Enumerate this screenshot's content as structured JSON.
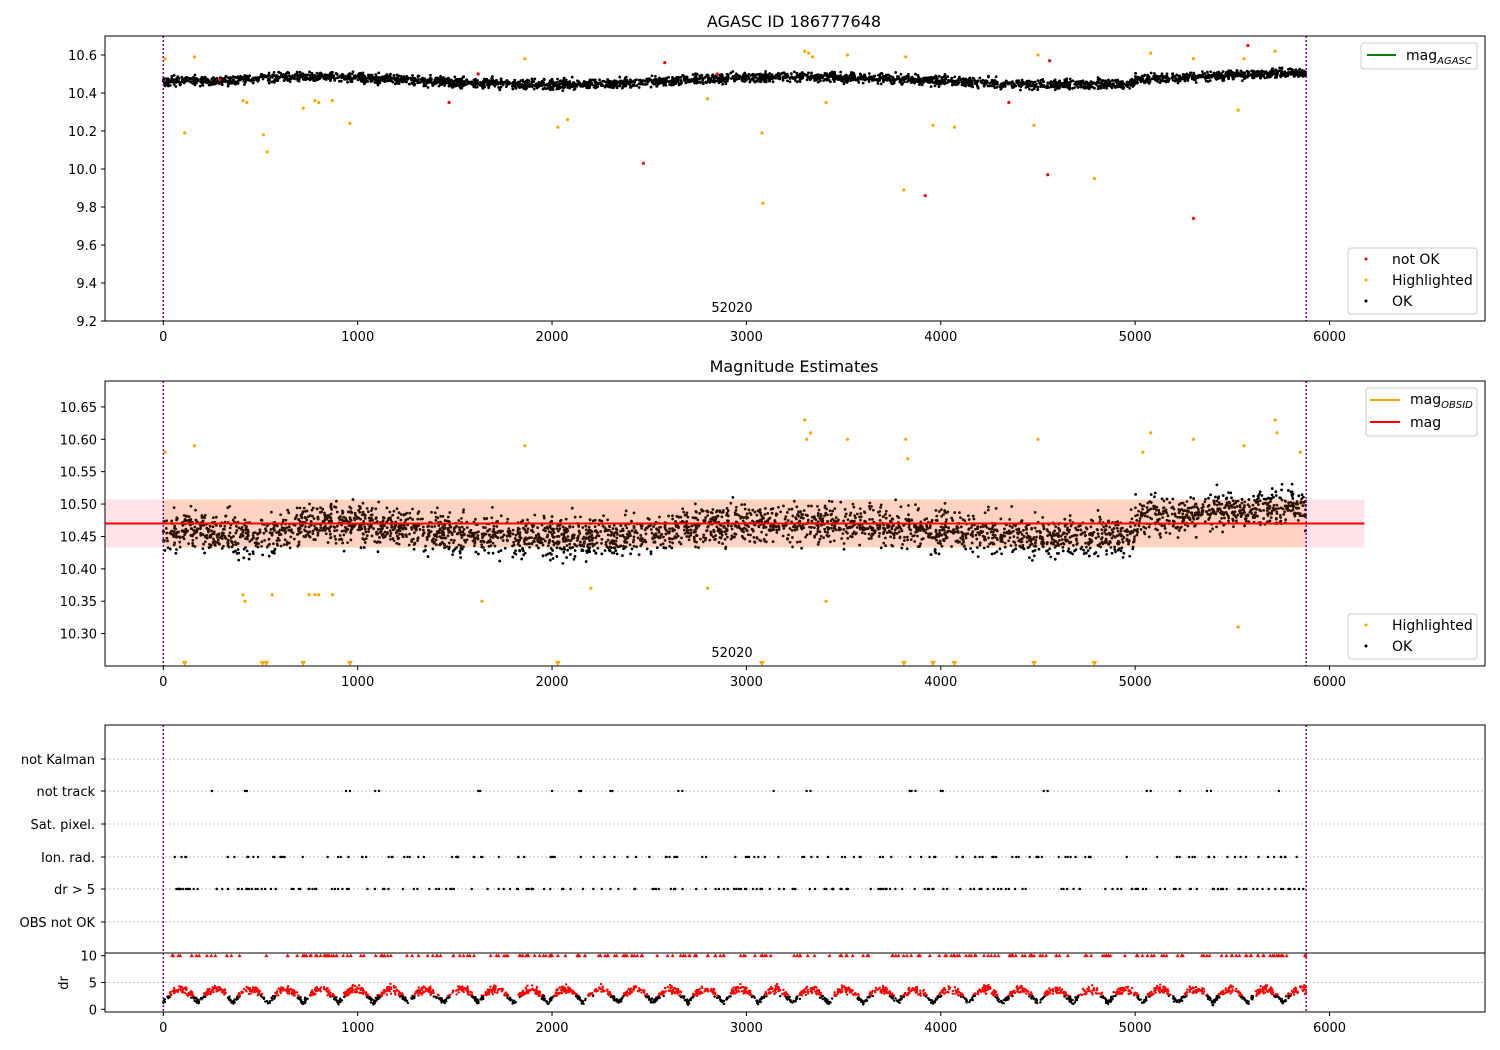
{
  "colors": {
    "ok": "#000000",
    "highlighted": "#ffa500",
    "not_ok": "#ff0000",
    "mag_agasc": "#008000",
    "mag_obsid": "#ffa500",
    "mag": "#ff0000",
    "band": "#ffc0cb",
    "vline": "#800080",
    "grid": "#b0b0b0"
  },
  "chart_data": [
    {
      "type": "scatter",
      "title": "AGASC ID 186777648",
      "xlim": [
        -300,
        6800
      ],
      "ylim": [
        9.2,
        10.7
      ],
      "x_ticks": [
        0,
        1000,
        2000,
        3000,
        4000,
        5000,
        6000
      ],
      "y_ticks": [
        9.2,
        9.4,
        9.6,
        9.8,
        10.0,
        10.2,
        10.4,
        10.6
      ],
      "y_tick_labels": [
        "9.2",
        "9.4",
        "9.6",
        "9.8",
        "10.0",
        "10.2",
        "10.4",
        "10.6"
      ],
      "vlines": [
        0,
        5880
      ],
      "annotation": "52020",
      "legend_top": [
        {
          "label": "mag",
          "sub": "AGASC",
          "color": "#008000"
        }
      ],
      "legend_bottom": [
        {
          "label": "not OK",
          "color": "#ff0000"
        },
        {
          "label": "Highlighted",
          "color": "#ffa500"
        },
        {
          "label": "OK",
          "color": "#000000"
        }
      ],
      "band": {
        "x_range": [
          0,
          5880
        ],
        "center": 10.47,
        "spread": 0.035
      },
      "highlighted_points": [
        [
          10,
          10.58
        ],
        [
          110,
          10.19
        ],
        [
          160,
          10.59
        ],
        [
          410,
          10.36
        ],
        [
          430,
          10.35
        ],
        [
          515,
          10.18
        ],
        [
          535,
          10.09
        ],
        [
          720,
          10.32
        ],
        [
          780,
          10.36
        ],
        [
          800,
          10.35
        ],
        [
          870,
          10.36
        ],
        [
          960,
          10.24
        ],
        [
          1860,
          10.58
        ],
        [
          2030,
          10.22
        ],
        [
          2080,
          10.26
        ],
        [
          2800,
          10.37
        ],
        [
          3080,
          10.19
        ],
        [
          3085,
          9.82
        ],
        [
          3300,
          10.62
        ],
        [
          3320,
          10.61
        ],
        [
          3340,
          10.59
        ],
        [
          3410,
          10.35
        ],
        [
          3520,
          10.6
        ],
        [
          3810,
          9.89
        ],
        [
          3820,
          10.59
        ],
        [
          3960,
          10.23
        ],
        [
          4070,
          10.22
        ],
        [
          4480,
          10.23
        ],
        [
          4500,
          10.6
        ],
        [
          4790,
          9.95
        ],
        [
          5080,
          10.61
        ],
        [
          5300,
          10.58
        ],
        [
          5530,
          10.31
        ],
        [
          5560,
          10.58
        ],
        [
          5720,
          10.62
        ]
      ],
      "not_ok_points": [
        [
          2470,
          10.03
        ],
        [
          3920,
          9.86
        ],
        [
          4550,
          9.97
        ],
        [
          5300,
          9.74
        ],
        [
          5580,
          10.65
        ],
        [
          290,
          10.47
        ],
        [
          1620,
          10.5
        ],
        [
          1470,
          10.35
        ],
        [
          2580,
          10.56
        ],
        [
          2850,
          10.5
        ],
        [
          4350,
          10.35
        ],
        [
          4560,
          10.57
        ]
      ]
    },
    {
      "type": "scatter",
      "title": "Magnitude Estimates",
      "xlim": [
        -300,
        6800
      ],
      "ylim": [
        10.25,
        10.69
      ],
      "x_ticks": [
        0,
        1000,
        2000,
        3000,
        4000,
        5000,
        6000
      ],
      "y_ticks": [
        10.3,
        10.35,
        10.4,
        10.45,
        10.5,
        10.55,
        10.6,
        10.65
      ],
      "y_tick_labels": [
        "10.30",
        "10.35",
        "10.40",
        "10.45",
        "10.50",
        "10.55",
        "10.60",
        "10.65"
      ],
      "vlines": [
        0,
        5880
      ],
      "annotation": "52020",
      "legend_top": [
        {
          "label": "mag",
          "sub": "OBSID",
          "color": "#ffa500"
        },
        {
          "label": "mag",
          "sub": "",
          "color": "#ff0000"
        }
      ],
      "legend_bottom": [
        {
          "label": "Highlighted",
          "color": "#ffa500"
        },
        {
          "label": "OK",
          "color": "#000000"
        }
      ],
      "mag_line": {
        "x_range": [
          -300,
          6180
        ],
        "value": 10.47
      },
      "mag_band": {
        "x_range": [
          -300,
          6180
        ],
        "low": 10.433,
        "high": 10.507
      },
      "obsid_band": {
        "x_range": [
          0,
          5880
        ],
        "low": 10.433,
        "high": 10.507
      },
      "highlighted_points": [
        [
          10,
          10.58
        ],
        [
          160,
          10.59
        ],
        [
          410,
          10.36
        ],
        [
          420,
          10.35
        ],
        [
          560,
          10.36
        ],
        [
          750,
          10.36
        ],
        [
          780,
          10.36
        ],
        [
          800,
          10.36
        ],
        [
          870,
          10.36
        ],
        [
          1640,
          10.35
        ],
        [
          1860,
          10.59
        ],
        [
          2200,
          10.37
        ],
        [
          2800,
          10.37
        ],
        [
          3300,
          10.63
        ],
        [
          3310,
          10.6
        ],
        [
          3330,
          10.61
        ],
        [
          3410,
          10.35
        ],
        [
          3520,
          10.6
        ],
        [
          3820,
          10.6
        ],
        [
          3830,
          10.57
        ],
        [
          4500,
          10.6
        ],
        [
          5040,
          10.58
        ],
        [
          5080,
          10.61
        ],
        [
          5300,
          10.6
        ],
        [
          5530,
          10.31
        ],
        [
          5560,
          10.59
        ],
        [
          5720,
          10.63
        ],
        [
          5730,
          10.61
        ],
        [
          5850,
          10.58
        ]
      ],
      "clipped_marker_x": [
        110,
        510,
        530,
        720,
        960,
        2030,
        3080,
        3810,
        3960,
        4070,
        4480,
        4790
      ]
    },
    {
      "type": "scatter",
      "title": "",
      "xlim": [
        -300,
        6800
      ],
      "categories": [
        "not Kalman",
        "not track",
        "Sat. pixel.",
        "Ion. rad.",
        "dr > 5",
        "OBS not OK"
      ],
      "vlines": [
        0,
        5880
      ],
      "not_track_x": [
        250,
        420,
        430,
        940,
        960,
        1090,
        1110,
        1620,
        1630,
        2000,
        2140,
        2150,
        2300,
        2310,
        2650,
        2670,
        3140,
        3310,
        3330,
        3840,
        3850,
        3870,
        4000,
        4010,
        4530,
        4550,
        5060,
        5080,
        5230,
        5370,
        5390,
        5740
      ]
    },
    {
      "type": "scatter",
      "title": "",
      "ylabel": "dr",
      "xlim": [
        -300,
        6800
      ],
      "ylim": [
        -0.5,
        10.5
      ],
      "x_ticks": [
        0,
        1000,
        2000,
        3000,
        4000,
        5000,
        6000
      ],
      "y_ticks": [
        0,
        5,
        10
      ],
      "y_tick_labels": [
        "0",
        "5",
        "10"
      ],
      "threshold": 5,
      "vlines": [
        0,
        5880
      ]
    }
  ]
}
